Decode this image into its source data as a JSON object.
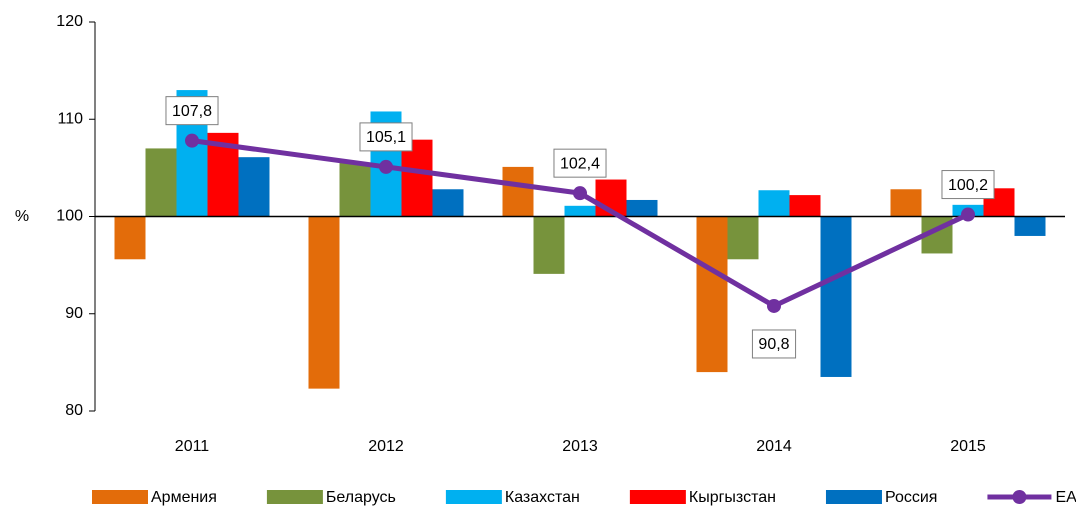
{
  "chart_data": {
    "type": "bar",
    "ylabel": "%",
    "categories": [
      "2011",
      "2012",
      "2013",
      "2014",
      "2015"
    ],
    "ylim": [
      80,
      120
    ],
    "yticks": [
      80,
      90,
      100,
      110,
      120
    ],
    "baseline": 100,
    "series": [
      {
        "name": "Армения",
        "color": "#e36c0a",
        "values": [
          95.6,
          82.3,
          105.1,
          84.0,
          102.8
        ]
      },
      {
        "name": "Беларусь",
        "color": "#77933c",
        "values": [
          107.0,
          105.5,
          94.1,
          95.6,
          96.2
        ]
      },
      {
        "name": "Казахстан",
        "color": "#00b0f0",
        "values": [
          113.0,
          110.8,
          101.1,
          102.7,
          101.2
        ]
      },
      {
        "name": "Кыргызстан",
        "color": "#ff0000",
        "values": [
          108.6,
          107.9,
          103.8,
          102.2,
          102.9
        ]
      },
      {
        "name": "Россия",
        "color": "#0070c0",
        "values": [
          106.1,
          102.8,
          101.7,
          83.5,
          98.0
        ]
      },
      {
        "name": "ЕАЭС",
        "type": "line",
        "color": "#7030a0",
        "values": [
          107.8,
          105.1,
          102.4,
          90.8,
          100.2
        ],
        "value_labels": [
          "107,8",
          "105,1",
          "102,4",
          "90,8",
          "100,2"
        ]
      }
    ]
  }
}
